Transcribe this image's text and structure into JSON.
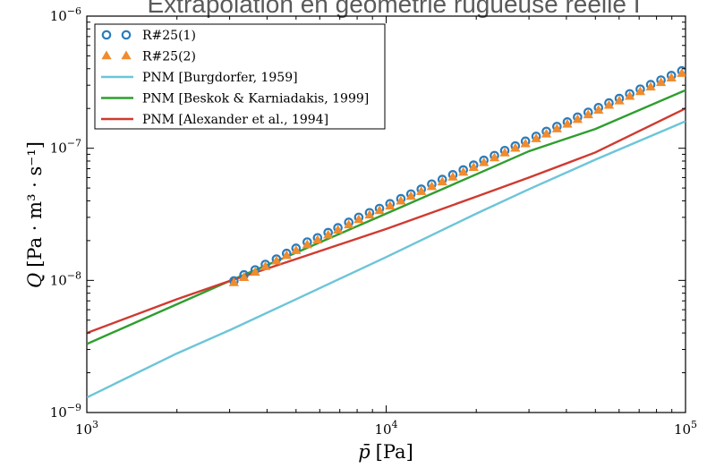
{
  "header": {
    "title": "Extrapolation en géométrie rugueuse réelle I"
  },
  "chart_data": {
    "type": "scatter",
    "title": "",
    "xlabel_main": "p̄",
    "xlabel_unit": "[Pa]",
    "ylabel_main": "Q",
    "ylabel_unit": "[Pa · m³ · s⁻¹]",
    "x_scale": "log",
    "y_scale": "log",
    "xlim": [
      1000,
      100000
    ],
    "ylim": [
      1e-09,
      1e-06
    ],
    "x_ticks": [
      {
        "value": 1000,
        "base": "10",
        "exp": "3"
      },
      {
        "value": 10000,
        "base": "10",
        "exp": "4"
      },
      {
        "value": 100000,
        "base": "10",
        "exp": "5"
      }
    ],
    "y_ticks": [
      {
        "value": 1e-09,
        "base": "10",
        "exp": "−9"
      },
      {
        "value": 1e-08,
        "base": "10",
        "exp": "−8"
      },
      {
        "value": 1e-07,
        "base": "10",
        "exp": "−7"
      },
      {
        "value": 1e-06,
        "base": "10",
        "exp": "−6"
      }
    ],
    "grid": false,
    "legend_position": "top-left",
    "series": [
      {
        "name": "R#25(1)",
        "kind": "scatter",
        "marker": "circle",
        "color": "#2b7bba",
        "x": [
          3100,
          3350,
          3650,
          3950,
          4300,
          4650,
          5000,
          5450,
          5900,
          6400,
          6900,
          7500,
          8100,
          8800,
          9500,
          10300,
          11200,
          12100,
          13100,
          14200,
          15400,
          16700,
          18100,
          19600,
          21200,
          23000,
          24900,
          27000,
          29200,
          31700,
          34300,
          37200,
          40300,
          43600,
          47300,
          51200,
          55500,
          60100,
          65100,
          70600,
          76500,
          82800,
          89700,
          97200
        ],
        "y": [
          9.9e-09,
          1.1e-08,
          1.2e-08,
          1.32e-08,
          1.45e-08,
          1.6e-08,
          1.75e-08,
          1.95e-08,
          2.1e-08,
          2.3e-08,
          2.5e-08,
          2.75e-08,
          3e-08,
          3.25e-08,
          3.5e-08,
          3.8e-08,
          4.15e-08,
          4.5e-08,
          4.9e-08,
          5.35e-08,
          5.8e-08,
          6.3e-08,
          6.85e-08,
          7.45e-08,
          8.1e-08,
          8.8e-08,
          9.6e-08,
          1.04e-07,
          1.13e-07,
          1.23e-07,
          1.34e-07,
          1.46e-07,
          1.58e-07,
          1.72e-07,
          1.87e-07,
          2.03e-07,
          2.2e-07,
          2.38e-07,
          2.58e-07,
          2.8e-07,
          3.03e-07,
          3.28e-07,
          3.55e-07,
          3.85e-07
        ]
      },
      {
        "name": "R#25(2)",
        "kind": "scatter",
        "marker": "triangle",
        "color": "#f08b2e",
        "x": [
          3100,
          3350,
          3650,
          3950,
          4300,
          4650,
          5000,
          5450,
          5900,
          6400,
          6900,
          7500,
          8100,
          8800,
          9500,
          10300,
          11200,
          12100,
          13100,
          14200,
          15400,
          16700,
          18100,
          19600,
          21200,
          23000,
          24900,
          27000,
          29200,
          31700,
          34300,
          37200,
          40300,
          43600,
          47300,
          51200,
          55500,
          60100,
          65100,
          70600,
          76500,
          82800,
          89700,
          97200
        ],
        "y": [
          9.6e-09,
          1.05e-08,
          1.15e-08,
          1.27e-08,
          1.4e-08,
          1.54e-08,
          1.68e-08,
          1.86e-08,
          2.02e-08,
          2.2e-08,
          2.4e-08,
          2.63e-08,
          2.88e-08,
          3.12e-08,
          3.37e-08,
          3.65e-08,
          3.98e-08,
          4.32e-08,
          4.7e-08,
          5.12e-08,
          5.56e-08,
          6.04e-08,
          6.57e-08,
          7.15e-08,
          7.77e-08,
          8.45e-08,
          9.2e-08,
          1e-07,
          1.08e-07,
          1.18e-07,
          1.28e-07,
          1.4e-07,
          1.52e-07,
          1.65e-07,
          1.79e-07,
          1.94e-07,
          2.11e-07,
          2.28e-07,
          2.47e-07,
          2.68e-07,
          2.9e-07,
          3.14e-07,
          3.4e-07,
          3.68e-07
        ]
      },
      {
        "name": "PNM [Burgdorfer, 1959]",
        "kind": "line",
        "color": "#6cc5d8",
        "x": [
          1000,
          2000,
          3000,
          5000,
          10000,
          20000,
          30000,
          50000,
          100000
        ],
        "y": [
          1.3e-09,
          2.8e-09,
          4.2e-09,
          7.2e-09,
          1.5e-08,
          3.2e-08,
          4.9e-08,
          8.2e-08,
          1.6e-07
        ]
      },
      {
        "name": "PNM [Beskok & Karniadakis, 1999]",
        "kind": "line",
        "color": "#2e9e2e",
        "x": [
          1000,
          2000,
          3000,
          5000,
          10000,
          20000,
          30000,
          50000,
          100000
        ],
        "y": [
          3.3e-09,
          6.6e-09,
          9.9e-09,
          1.62e-08,
          3.2e-08,
          6.35e-08,
          9.5e-08,
          1.4e-07,
          2.75e-07
        ]
      },
      {
        "name": "PNM [Alexander et al., 1994]",
        "kind": "line",
        "color": "#d03a30",
        "x": [
          1000,
          2000,
          3000,
          5000,
          10000,
          20000,
          30000,
          50000,
          100000
        ],
        "y": [
          4e-09,
          7.2e-09,
          9.9e-09,
          1.45e-08,
          2.45e-08,
          4.3e-08,
          6e-08,
          9.3e-08,
          2e-07
        ]
      }
    ]
  }
}
